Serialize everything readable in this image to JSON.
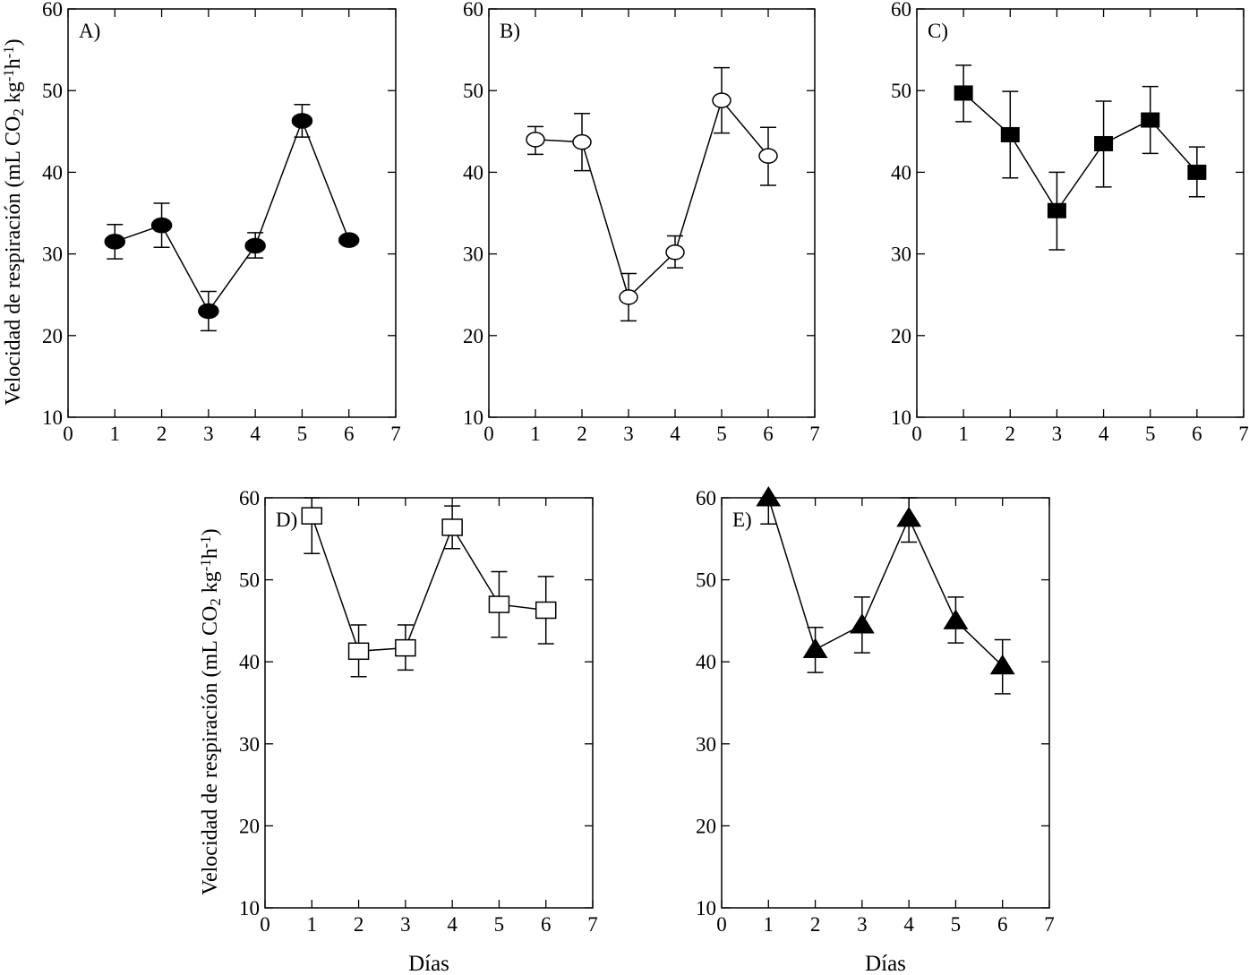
{
  "shared": {
    "ylabel_main": "Velocidad de respiración (mL CO",
    "ylabel_sub": "2",
    "ylabel_unit_a": " kg",
    "ylabel_sup_a": "-1",
    "ylabel_unit_b": "h",
    "ylabel_sup_b": "-1",
    "ylabel_close": ")",
    "xlabel": "Días"
  },
  "chart_data": [
    {
      "type": "line",
      "panel": "A)",
      "marker": "filled-circle",
      "x": [
        1,
        2,
        3,
        4,
        5,
        6
      ],
      "values": [
        31.5,
        33.5,
        23,
        31,
        46.3,
        31.7
      ],
      "err_low": [
        29.4,
        30.8,
        20.6,
        29.5,
        44.3,
        31.2
      ],
      "err_high": [
        33.6,
        36.2,
        25.4,
        32.6,
        48.3,
        32.2
      ],
      "xlim": [
        0,
        7
      ],
      "ylim": [
        10,
        60
      ],
      "xticks": [
        "0",
        "1",
        "2",
        "3",
        "4",
        "5",
        "6",
        "7"
      ],
      "yticks": [
        "10",
        "20",
        "30",
        "40",
        "50",
        "60"
      ],
      "xlabel": "",
      "ylabel": "Velocidad de respiración (mL CO2 kg-1h-1)"
    },
    {
      "type": "line",
      "panel": "B)",
      "marker": "open-circle",
      "x": [
        1,
        2,
        3,
        4,
        5,
        6
      ],
      "values": [
        44,
        43.7,
        24.7,
        30.2,
        48.8,
        42
      ],
      "err_low": [
        42.2,
        40.2,
        21.8,
        28.3,
        44.8,
        38.4
      ],
      "err_high": [
        45.6,
        47.2,
        27.6,
        32.2,
        52.8,
        45.5
      ],
      "xlim": [
        0,
        7
      ],
      "ylim": [
        10,
        60
      ],
      "xticks": [
        "0",
        "1",
        "2",
        "3",
        "4",
        "5",
        "6",
        "7"
      ],
      "yticks": [
        "10",
        "20",
        "30",
        "40",
        "50",
        "60"
      ],
      "xlabel": "",
      "ylabel": ""
    },
    {
      "type": "line",
      "panel": "C)",
      "marker": "filled-square",
      "x": [
        1,
        2,
        3,
        4,
        5,
        6
      ],
      "values": [
        49.7,
        44.6,
        35.3,
        43.5,
        46.4,
        40
      ],
      "err_low": [
        46.2,
        39.3,
        30.5,
        38.2,
        42.3,
        37
      ],
      "err_high": [
        53.1,
        49.9,
        40,
        48.7,
        50.5,
        43.1
      ],
      "xlim": [
        0,
        7
      ],
      "ylim": [
        10,
        60
      ],
      "xticks": [
        "0",
        "1",
        "2",
        "3",
        "4",
        "5",
        "6",
        "7"
      ],
      "yticks": [
        "10",
        "20",
        "30",
        "40",
        "50",
        "60"
      ],
      "xlabel": "",
      "ylabel": ""
    },
    {
      "type": "line",
      "panel": "D)",
      "marker": "open-square",
      "x": [
        1,
        2,
        3,
        4,
        5,
        6
      ],
      "values": [
        57.8,
        41.3,
        41.7,
        56.4,
        47,
        46.3
      ],
      "err_low": [
        53.2,
        38.2,
        39,
        53.8,
        43,
        42.2
      ],
      "err_high": [
        60,
        44.5,
        44.5,
        59,
        51,
        50.4
      ],
      "xlim": [
        0,
        7
      ],
      "ylim": [
        10,
        60
      ],
      "xticks": [
        "0",
        "1",
        "2",
        "3",
        "4",
        "5",
        "6",
        "7"
      ],
      "yticks": [
        "10",
        "20",
        "30",
        "40",
        "50",
        "60"
      ],
      "xlabel": "Días",
      "ylabel": "Velocidad de respiración (mL CO2 kg-1h-1)"
    },
    {
      "type": "line",
      "panel": "E)",
      "marker": "filled-triangle",
      "x": [
        1,
        2,
        3,
        4,
        5,
        6
      ],
      "values": [
        60,
        41.5,
        44.5,
        57.5,
        45,
        39.5
      ],
      "err_low": [
        56.8,
        38.7,
        41.1,
        54.6,
        42.3,
        36.1
      ],
      "err_high": [
        60,
        44.2,
        47.9,
        60,
        47.9,
        42.7
      ],
      "xlim": [
        0,
        7
      ],
      "ylim": [
        10,
        60
      ],
      "xticks": [
        "0",
        "1",
        "2",
        "3",
        "4",
        "5",
        "6",
        "7"
      ],
      "yticks": [
        "10",
        "20",
        "30",
        "40",
        "50",
        "60"
      ],
      "xlabel": "Días",
      "ylabel": ""
    }
  ]
}
